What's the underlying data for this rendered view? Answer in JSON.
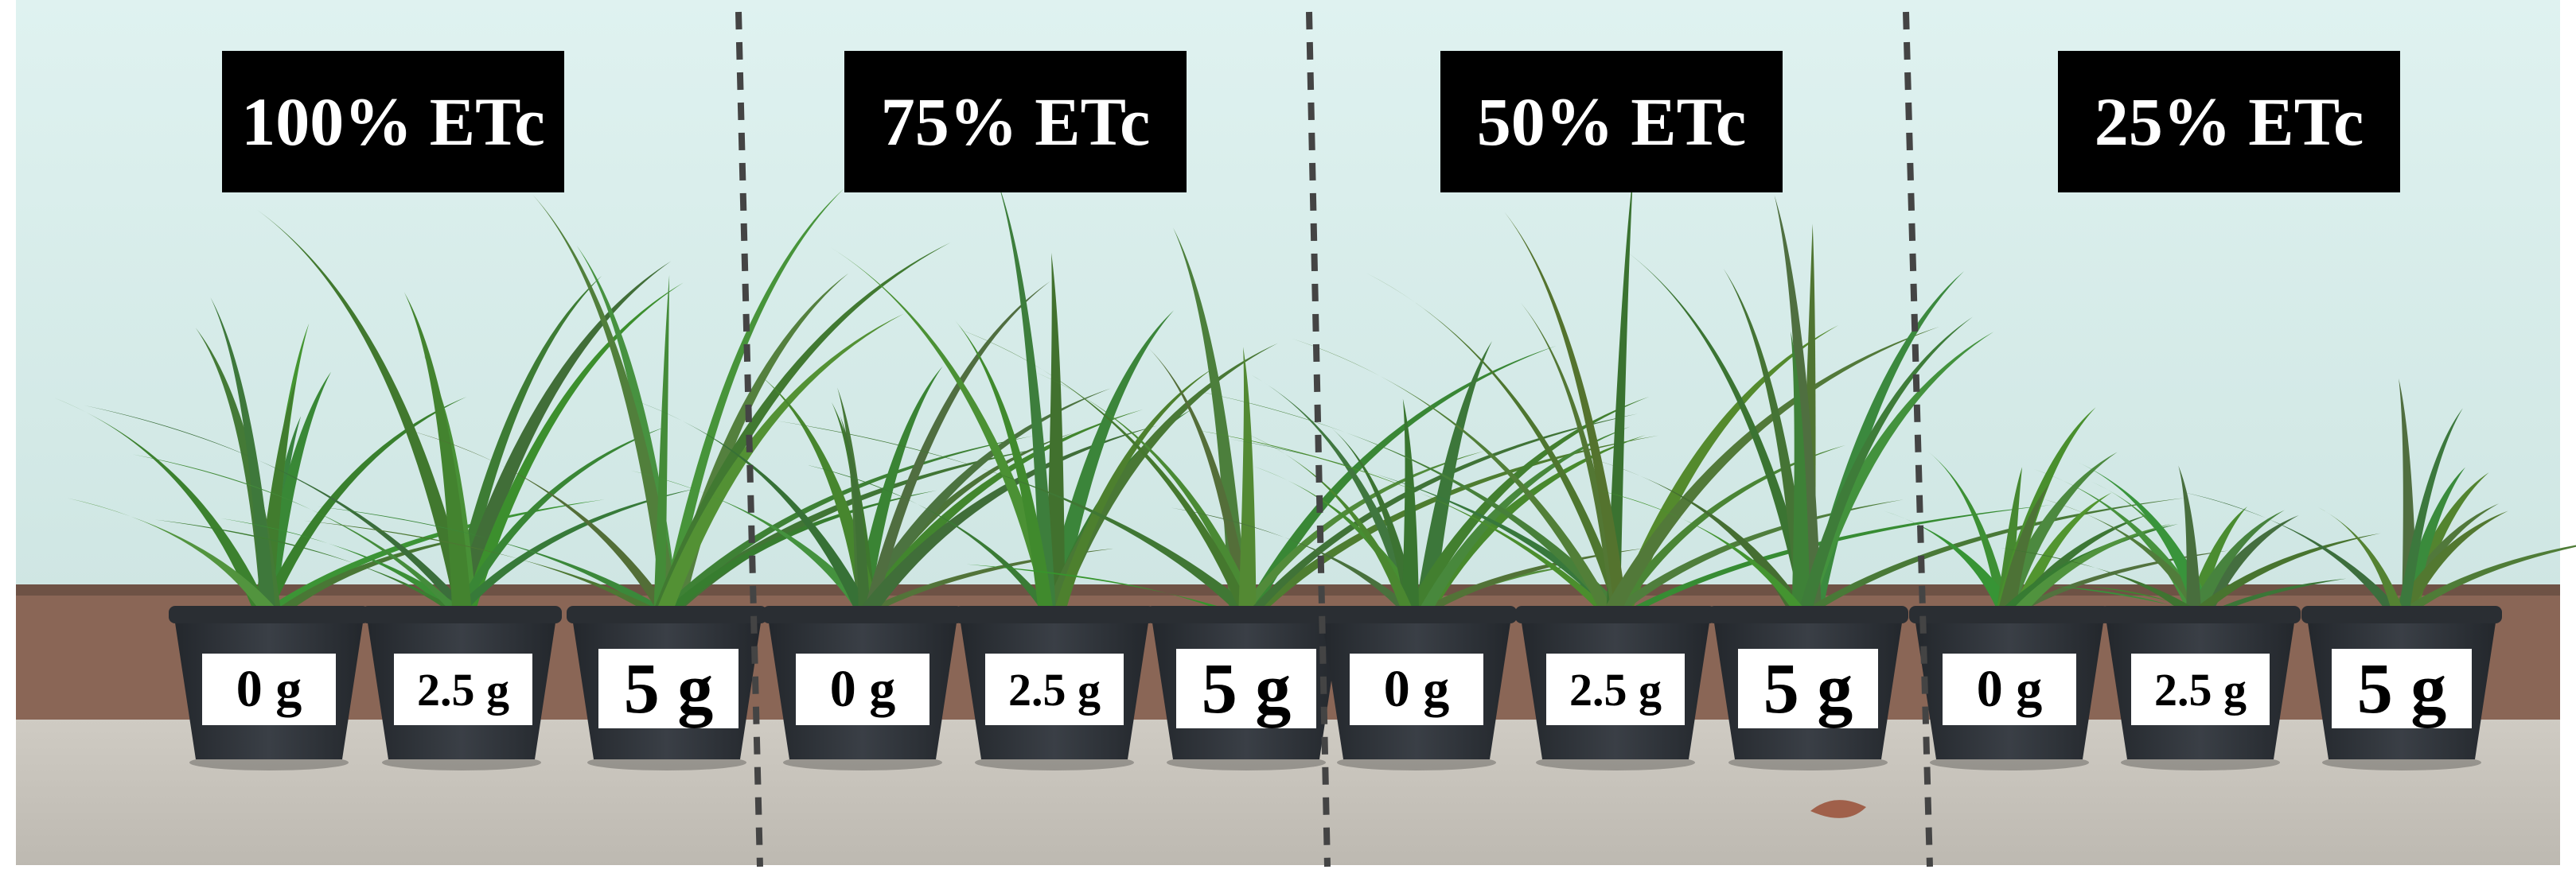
{
  "groups": [
    {
      "label": "100% ETc",
      "doses": [
        "0 g",
        "2.5 g",
        "5 g"
      ]
    },
    {
      "label": "75% ETc",
      "doses": [
        "0 g",
        "2.5 g",
        "5 g"
      ]
    },
    {
      "label": "50% ETc",
      "doses": [
        "0 g",
        "2.5 g",
        "5 g"
      ]
    },
    {
      "label": "25% ETc",
      "doses": [
        "0 g",
        "2.5 g",
        "5 g"
      ]
    }
  ],
  "colors": {
    "wall": "#d6ecea",
    "wall_trim": "#8a6656",
    "floor": "#c9c5bd",
    "pot": "#2c3036",
    "leaf": "#4f8a3a",
    "divider": "#444444"
  }
}
